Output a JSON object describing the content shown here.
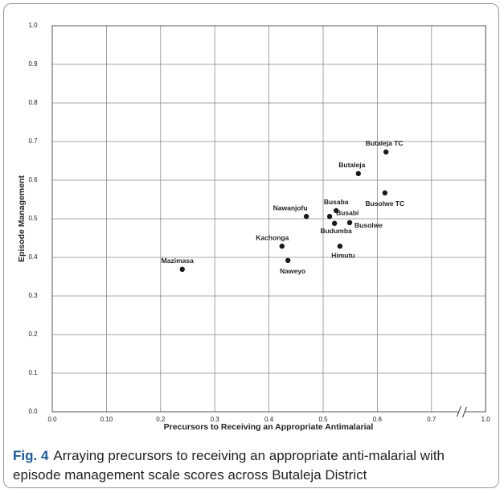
{
  "chart_data": {
    "type": "scatter",
    "x_label": "Precursors to Receiving an Appropriate Antimalarial",
    "y_label": "Episode Management",
    "caption_label": "Fig. 4",
    "caption": "Arraying precursors to receiving an appropriate anti-malarial with episode management scale scores across Butaleja District",
    "labels": [
      "Mazimasa",
      "Naweyo",
      "Kachonga",
      "Nawanjofu",
      "Busaba",
      "Busabi",
      "Budumba",
      "Busolwe",
      "Himutu",
      "Butaleja",
      "Butaleja TC",
      "Busolwe TC"
    ],
    "x": [
      0.24,
      0.435,
      0.424,
      0.469,
      0.524,
      0.512,
      0.521,
      0.549,
      0.531,
      0.565,
      0.616,
      0.614
    ],
    "values": [
      0.369,
      0.392,
      0.429,
      0.506,
      0.521,
      0.506,
      0.488,
      0.49,
      0.429,
      0.617,
      0.673,
      0.567
    ],
    "color": "#1a1a1a",
    "xlim": [
      0,
      1.0
    ],
    "ylim": [
      0,
      1.0
    ],
    "xbreak": [
      0.7,
      1.0
    ],
    "xticks": [
      {
        "value": 0,
        "label": "0.0"
      },
      {
        "value": 0.1,
        "label": "0.10"
      },
      0.2,
      0.3,
      0.4,
      0.5,
      0.6,
      0.7,
      {
        "value": 1.0,
        "label": "1.0"
      }
    ],
    "yticks": [
      {
        "value": 0,
        "label": "0.0"
      },
      0.1,
      0.2,
      0.3,
      0.4,
      0.5,
      0.6,
      0.7,
      0.8,
      0.9,
      {
        "value": 1.0,
        "label": "1.0"
      }
    ],
    "grid": true
  }
}
